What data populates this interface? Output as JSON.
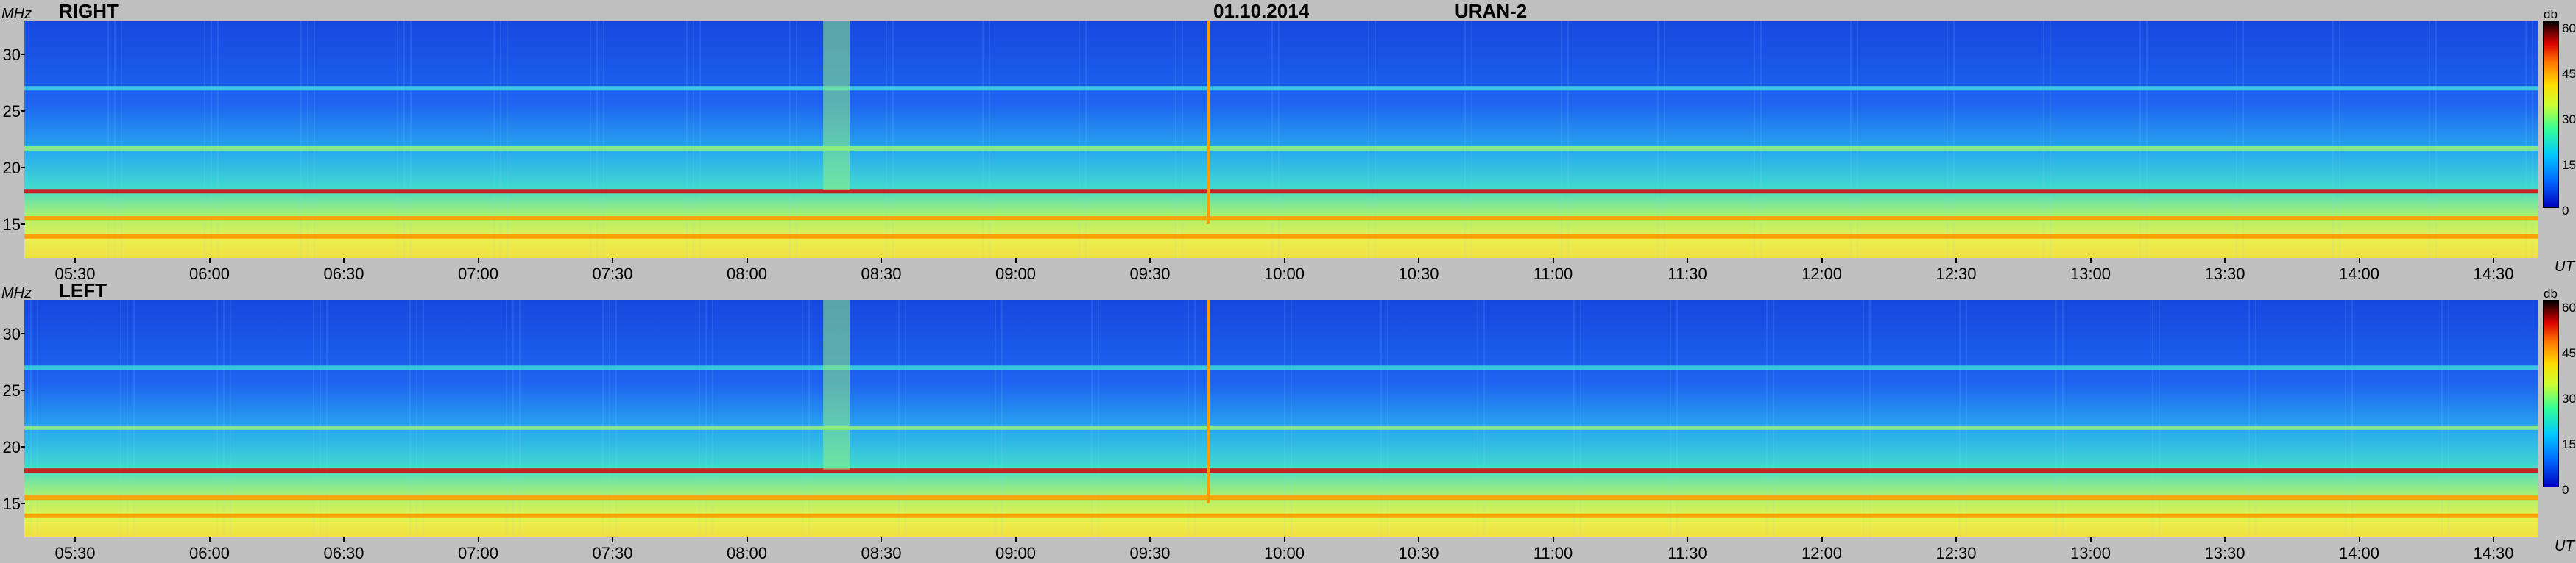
{
  "header": {
    "date": "01.10.2014",
    "instrument": "URAN-2"
  },
  "colors": {
    "background": "#c0c0c0",
    "low": "#1e4fe0",
    "mid": "#3fd0e0",
    "high": "#f0e040",
    "peak": "#c01818"
  },
  "panels": [
    {
      "label": "RIGHT",
      "y_unit": "MHz",
      "x_unit": "UT",
      "y_ticks": [
        "30",
        "25",
        "20",
        "15"
      ],
      "x_ticks": [
        "05:30",
        "06:00",
        "06:30",
        "07:00",
        "07:30",
        "08:00",
        "08:30",
        "09:00",
        "09:30",
        "10:00",
        "10:30",
        "11:00",
        "11:30",
        "12:00",
        "12:30",
        "13:00",
        "13:30",
        "14:00",
        "14:30"
      ],
      "colorbar": {
        "unit": "db",
        "ticks": [
          "60",
          "45",
          "30",
          "15",
          "0"
        ]
      }
    },
    {
      "label": "LEFT",
      "y_unit": "MHz",
      "x_unit": "UT",
      "y_ticks": [
        "30",
        "25",
        "20",
        "15"
      ],
      "x_ticks": [
        "05:30",
        "06:00",
        "06:30",
        "07:00",
        "07:30",
        "08:00",
        "08:30",
        "09:00",
        "09:30",
        "10:00",
        "10:30",
        "11:00",
        "11:30",
        "12:00",
        "12:30",
        "13:00",
        "13:30",
        "14:00",
        "14:30"
      ],
      "colorbar": {
        "unit": "db",
        "ticks": [
          "60",
          "45",
          "30",
          "15",
          "0"
        ]
      }
    }
  ],
  "chart_data": [
    {
      "type": "heatmap",
      "title": "RIGHT",
      "xlabel": "UT",
      "ylabel": "MHz",
      "xlim": [
        "05:20",
        "14:45"
      ],
      "ylim": [
        12,
        33
      ],
      "colorbar": {
        "unit": "db",
        "range": [
          0,
          60
        ]
      },
      "bands_mhz": [
        {
          "freq": 17.9,
          "level_db": 55
        },
        {
          "freq": 15.5,
          "level_db": 50
        },
        {
          "freq": 13.9,
          "level_db": 50
        },
        {
          "freq": 21.7,
          "level_db": 35
        },
        {
          "freq": 27.0,
          "level_db": 25
        }
      ],
      "events": [
        {
          "time": "08:20",
          "freq_range": [
            18,
            33
          ],
          "level_db": 35
        },
        {
          "time": "09:43",
          "freq_range": [
            15,
            33
          ],
          "level_db": 50
        }
      ]
    },
    {
      "type": "heatmap",
      "title": "LEFT",
      "xlabel": "UT",
      "ylabel": "MHz",
      "xlim": [
        "05:20",
        "14:45"
      ],
      "ylim": [
        12,
        33
      ],
      "colorbar": {
        "unit": "db",
        "range": [
          0,
          60
        ]
      },
      "bands_mhz": [
        {
          "freq": 17.9,
          "level_db": 55
        },
        {
          "freq": 15.5,
          "level_db": 50
        },
        {
          "freq": 13.9,
          "level_db": 50
        },
        {
          "freq": 21.7,
          "level_db": 35
        },
        {
          "freq": 27.0,
          "level_db": 25
        }
      ],
      "events": [
        {
          "time": "08:20",
          "freq_range": [
            18,
            33
          ],
          "level_db": 35
        },
        {
          "time": "09:43",
          "freq_range": [
            15,
            33
          ],
          "level_db": 50
        }
      ]
    }
  ]
}
